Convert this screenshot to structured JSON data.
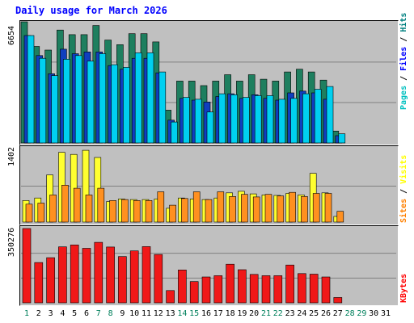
{
  "title": "Daily usage for March 2026",
  "chart_data": [
    {
      "type": "bar",
      "panel": "hits-files-pages",
      "max_label": "6654",
      "ylim": [
        0,
        6654
      ],
      "categories": [
        "1",
        "2",
        "3",
        "4",
        "5",
        "6",
        "7",
        "8",
        "9",
        "10",
        "11",
        "12",
        "13",
        "14",
        "15",
        "16",
        "17",
        "18",
        "19",
        "20",
        "21",
        "22",
        "23",
        "24",
        "25",
        "26",
        "27",
        "28",
        "29",
        "30",
        "31"
      ],
      "legend_parts": [
        {
          "text": "Pages",
          "color": "#00c0c0"
        },
        {
          "text": " / ",
          "color": "#000000"
        },
        {
          "text": "Files",
          "color": "#0000ff"
        },
        {
          "text": " / ",
          "color": "#000000"
        },
        {
          "text": "Hits",
          "color": "#008080"
        }
      ],
      "series": [
        {
          "name": "Hits",
          "color": "#1e7f5f",
          "values": [
            6654,
            5300,
            5100,
            6200,
            5950,
            5950,
            6450,
            5650,
            5400,
            6000,
            6000,
            5550,
            1800,
            3400,
            3400,
            3150,
            3400,
            3750,
            3400,
            3750,
            3500,
            3400,
            3900,
            4050,
            3900,
            3450,
            650,
            0,
            0,
            0,
            0
          ]
        },
        {
          "name": "Files",
          "color": "#0f3fbf",
          "values": [
            5900,
            4800,
            3800,
            5150,
            4900,
            5000,
            5000,
            4250,
            4050,
            4650,
            4650,
            3850,
            1250,
            2450,
            2350,
            2250,
            2550,
            2700,
            2450,
            2650,
            2450,
            2350,
            2750,
            2850,
            2750,
            2400,
            400,
            0,
            0,
            0,
            0
          ]
        },
        {
          "name": "Pages",
          "color": "#00d0f0",
          "values": [
            5900,
            4650,
            3700,
            4600,
            4800,
            4500,
            4900,
            4300,
            4150,
            4950,
            4950,
            3900,
            1150,
            2500,
            2400,
            1700,
            2700,
            2650,
            2500,
            2600,
            2600,
            2400,
            2450,
            2700,
            2950,
            3100,
            500,
            0,
            0,
            0,
            0
          ]
        }
      ]
    },
    {
      "type": "bar",
      "panel": "visits-sites",
      "max_label": "1402",
      "ylim": [
        0,
        1402
      ],
      "categories": [
        "1",
        "2",
        "3",
        "4",
        "5",
        "6",
        "7",
        "8",
        "9",
        "10",
        "11",
        "12",
        "13",
        "14",
        "15",
        "16",
        "17",
        "18",
        "19",
        "20",
        "21",
        "22",
        "23",
        "24",
        "25",
        "26",
        "27",
        "28",
        "29",
        "30",
        "31"
      ],
      "legend_parts": [
        {
          "text": "Sites",
          "color": "#ff8000"
        },
        {
          "text": " / ",
          "color": "#000000"
        },
        {
          "text": "Visits",
          "color": "#ffff00"
        }
      ],
      "series": [
        {
          "name": "Visits",
          "color": "#ffff30",
          "values": [
            420,
            470,
            920,
            1360,
            1320,
            1400,
            1260,
            400,
            450,
            440,
            440,
            450,
            270,
            470,
            450,
            440,
            470,
            570,
            600,
            550,
            530,
            520,
            560,
            530,
            950,
            570,
            110,
            0,
            0,
            0,
            0
          ]
        },
        {
          "name": "Sites",
          "color": "#ff9020",
          "values": [
            350,
            370,
            530,
            720,
            660,
            530,
            660,
            420,
            440,
            420,
            420,
            590,
            330,
            460,
            590,
            440,
            590,
            500,
            540,
            490,
            540,
            510,
            580,
            500,
            560,
            560,
            210,
            0,
            0,
            0,
            0
          ]
        }
      ]
    },
    {
      "type": "bar",
      "panel": "kbytes",
      "max_label": "350276",
      "ylim": [
        0,
        350276
      ],
      "categories": [
        "1",
        "2",
        "3",
        "4",
        "5",
        "6",
        "7",
        "8",
        "9",
        "10",
        "11",
        "12",
        "13",
        "14",
        "15",
        "16",
        "17",
        "18",
        "19",
        "20",
        "21",
        "22",
        "23",
        "24",
        "25",
        "26",
        "27",
        "28",
        "29",
        "30",
        "31"
      ],
      "legend_parts": [
        {
          "text": "KBytes",
          "color": "#ff0000"
        }
      ],
      "series": [
        {
          "name": "KBytes",
          "color": "#f01818",
          "values": [
            350276,
            190000,
            213000,
            264000,
            273000,
            257000,
            285000,
            263000,
            218000,
            245000,
            265000,
            228000,
            58000,
            155000,
            100000,
            122000,
            128000,
            182000,
            156000,
            134000,
            128000,
            128000,
            178000,
            138000,
            135000,
            122000,
            25000,
            0,
            0,
            0,
            0
          ]
        }
      ]
    }
  ],
  "axis_days": [
    {
      "label": "1",
      "weekend": true
    },
    {
      "label": "2",
      "weekend": false
    },
    {
      "label": "3",
      "weekend": false
    },
    {
      "label": "4",
      "weekend": false
    },
    {
      "label": "5",
      "weekend": false
    },
    {
      "label": "6",
      "weekend": false
    },
    {
      "label": "7",
      "weekend": true
    },
    {
      "label": "8",
      "weekend": true
    },
    {
      "label": "9",
      "weekend": false
    },
    {
      "label": "10",
      "weekend": false
    },
    {
      "label": "11",
      "weekend": false
    },
    {
      "label": "12",
      "weekend": false
    },
    {
      "label": "13",
      "weekend": false
    },
    {
      "label": "14",
      "weekend": true
    },
    {
      "label": "15",
      "weekend": true
    },
    {
      "label": "16",
      "weekend": false
    },
    {
      "label": "17",
      "weekend": false
    },
    {
      "label": "18",
      "weekend": false
    },
    {
      "label": "19",
      "weekend": false
    },
    {
      "label": "20",
      "weekend": false
    },
    {
      "label": "21",
      "weekend": true
    },
    {
      "label": "22",
      "weekend": true
    },
    {
      "label": "23",
      "weekend": false
    },
    {
      "label": "24",
      "weekend": false
    },
    {
      "label": "25",
      "weekend": false
    },
    {
      "label": "26",
      "weekend": false
    },
    {
      "label": "27",
      "weekend": false
    },
    {
      "label": "28",
      "weekend": true
    },
    {
      "label": "29",
      "weekend": true
    },
    {
      "label": "30",
      "weekend": false
    },
    {
      "label": "31",
      "weekend": false
    }
  ],
  "colors": {
    "weekday_label": "#000000",
    "weekend_label": "#00805c",
    "grid": "#808080",
    "background": "#c0c0c0",
    "title": "#0000ff"
  }
}
